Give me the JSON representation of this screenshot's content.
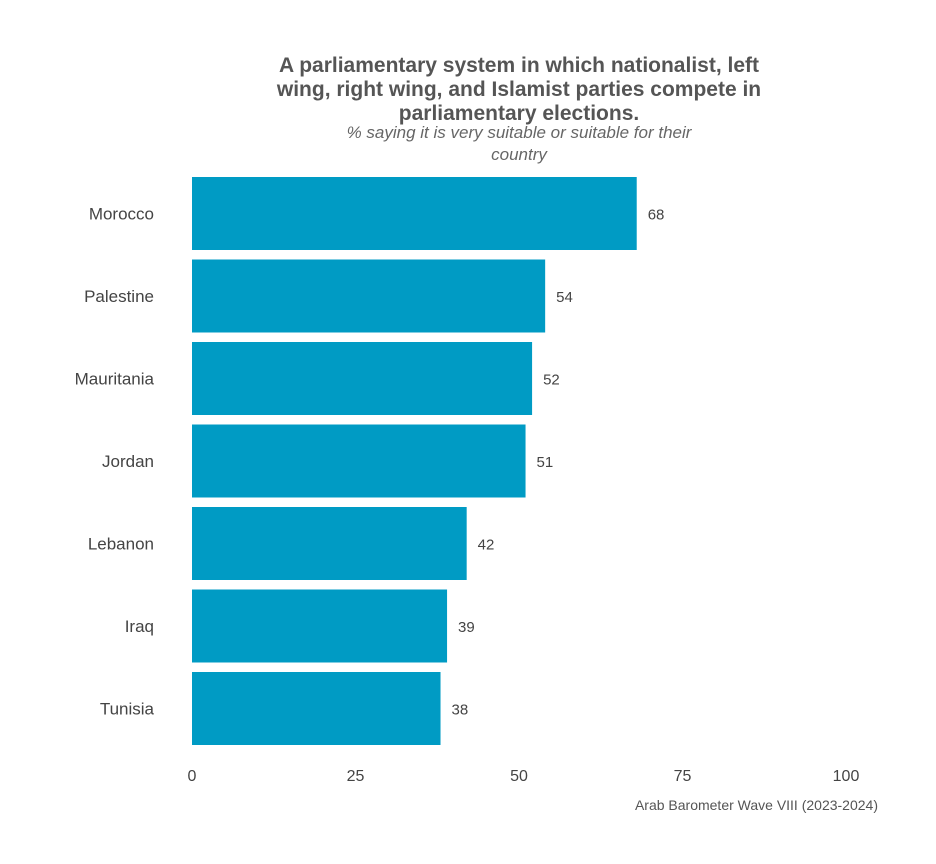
{
  "chart_data": {
    "type": "bar",
    "orientation": "horizontal",
    "title_lines": [
      "A parliamentary system in which nationalist, left",
      "wing, right wing, and Islamist parties compete in",
      "parliamentary elections."
    ],
    "subtitle_lines": [
      "% saying it is very suitable or suitable for their",
      "country"
    ],
    "categories": [
      "Morocco",
      "Palestine",
      "Mauritania",
      "Jordan",
      "Lebanon",
      "Iraq",
      "Tunisia"
    ],
    "values": [
      68,
      54,
      52,
      51,
      42,
      39,
      38
    ],
    "xlim": [
      0,
      100
    ],
    "xticks": [
      0,
      25,
      50,
      75,
      100
    ],
    "xlabel": "",
    "ylabel": "",
    "grid": false,
    "bar_color": "#009BC4",
    "caption": "Arab Barometer Wave VIII (2023-2024)"
  }
}
